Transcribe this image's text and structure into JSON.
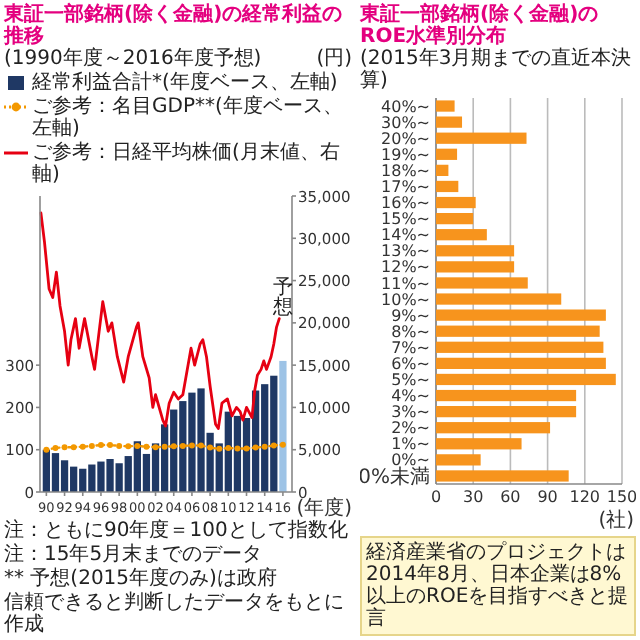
{
  "chart_data": [
    {
      "type": "bar",
      "title": "東証一部銘柄(除く金融)の経常利益の推移",
      "subtitle": "(1990年度～2016年度予想)",
      "xlabel": "(年度)",
      "y2label": "(円)",
      "legend": "top",
      "x": [
        1990,
        1991,
        1992,
        1993,
        1994,
        1995,
        1996,
        1997,
        1998,
        1999,
        2000,
        2001,
        2002,
        2003,
        2004,
        2005,
        2006,
        2007,
        2008,
        2009,
        2010,
        2011,
        2012,
        2013,
        2014,
        2015,
        2016
      ],
      "xlim": [
        1989.3,
        2017
      ],
      "xticks": [
        {
          "value": 1990,
          "label": "90"
        },
        {
          "value": 1992,
          "label": "92"
        },
        {
          "value": 1994,
          "label": "94"
        },
        {
          "value": 1996,
          "label": "96"
        },
        {
          "value": 1998,
          "label": "98"
        },
        {
          "value": 2000,
          "label": "00"
        },
        {
          "value": 2002,
          "label": "02"
        },
        {
          "value": 2004,
          "label": "04"
        },
        {
          "value": 2006,
          "label": "06"
        },
        {
          "value": 2008,
          "label": "08"
        },
        {
          "value": 2010,
          "label": "10"
        },
        {
          "value": 2012,
          "label": "12"
        },
        {
          "value": 2014,
          "label": "14"
        },
        {
          "value": 2016,
          "label": "16"
        }
      ],
      "ylim": [
        0,
        700
      ],
      "yticks": [
        0,
        100,
        200,
        300
      ],
      "y2lim": [
        0,
        35000
      ],
      "y2ticks": [
        0,
        {
          "value": 5000,
          "label": "5,000"
        },
        {
          "value": 10000,
          "label": "10,000"
        },
        {
          "value": 15000,
          "label": "15,000"
        },
        {
          "value": 20000,
          "label": "20,000"
        },
        {
          "value": 25000,
          "label": "25,000"
        },
        {
          "value": 30000,
          "label": "30,000"
        },
        {
          "value": 35000,
          "label": "35,000"
        }
      ],
      "series": [
        {
          "name": "経常利益合計*(年度ベース、左軸)",
          "type": "bar",
          "color": "#1f3864",
          "colors": [
            "#1f3864",
            "#1f3864",
            "#1f3864",
            "#1f3864",
            "#1f3864",
            "#1f3864",
            "#1f3864",
            "#1f3864",
            "#1f3864",
            "#1f3864",
            "#1f3864",
            "#1f3864",
            "#1f3864",
            "#1f3864",
            "#1f3864",
            "#1f3864",
            "#1f3864",
            "#1f3864",
            "#1f3864",
            "#1f3864",
            "#1f3864",
            "#1f3864",
            "#1f3864",
            "#1f3864",
            "#1f3864",
            "#1f3864",
            "#9dc3e6"
          ],
          "values": [
            100,
            92,
            75,
            60,
            55,
            65,
            72,
            78,
            68,
            85,
            120,
            90,
            115,
            160,
            195,
            215,
            235,
            245,
            140,
            115,
            190,
            180,
            175,
            240,
            255,
            275,
            310
          ]
        },
        {
          "name": "ご参考：名目GDP**(年度ベース、左軸)",
          "type": "line",
          "color": "#f39800",
          "line_style": "dotted",
          "marker": "circle",
          "values": [
            100,
            104,
            106,
            106,
            107,
            109,
            111,
            111,
            109,
            108,
            109,
            107,
            106,
            107,
            108,
            109,
            110,
            110,
            105,
            102,
            104,
            103,
            103,
            105,
            107,
            110,
            112
          ]
        },
        {
          "name": "ご参考：日経平均株価(月末値、右軸)",
          "type": "line",
          "axis": "y2",
          "color": "#e60012",
          "x": [
            1989.4,
            1989.8,
            1990.3,
            1990.7,
            1991.1,
            1991.5,
            1992.0,
            1992.4,
            1992.7,
            1993.2,
            1993.6,
            1994.2,
            1995.0,
            1995.3,
            1995.8,
            1996.2,
            1996.8,
            1997.2,
            1997.8,
            1998.5,
            1999.0,
            1999.9,
            2000.1,
            2000.6,
            2001.3,
            2001.7,
            2002.0,
            2002.8,
            2003.1,
            2003.5,
            2004.0,
            2004.5,
            2005.0,
            2005.9,
            2006.3,
            2006.9,
            2007.2,
            2007.6,
            2008.0,
            2008.6,
            2008.9,
            2009.3,
            2009.9,
            2010.4,
            2010.9,
            2011.3,
            2011.6,
            2012.0,
            2012.6,
            2012.9,
            2013.2,
            2013.6,
            2013.9,
            2014.2,
            2014.7,
            2015.0,
            2015.3,
            2015.6
          ],
          "values": [
            33000,
            29500,
            24000,
            23000,
            26000,
            22000,
            19000,
            15000,
            18000,
            20500,
            17000,
            20500,
            16000,
            14500,
            19000,
            22500,
            19000,
            20000,
            16000,
            13000,
            16000,
            19500,
            20000,
            16000,
            13500,
            10000,
            11500,
            8500,
            7800,
            10500,
            11800,
            11000,
            11500,
            17000,
            15000,
            17500,
            18000,
            16000,
            12500,
            8000,
            7500,
            10500,
            11000,
            9000,
            10000,
            9500,
            8500,
            10000,
            8800,
            12000,
            13800,
            14500,
            15500,
            14500,
            16000,
            17500,
            19500,
            20500
          ]
        }
      ],
      "annotations": [
        "注：ともに90年度＝100として指数化",
        "注：15年5月末までのデータ",
        {
          "text": "予想",
          "x": 2016,
          "y": 310
        },
        "** 予想(2015年度のみ)は政府",
        "信頼できると判断したデータをもとに作成"
      ]
    },
    {
      "type": "bar",
      "orientation": "horizontal",
      "title": "東証一部銘柄(除く金融)のROE水準別分布",
      "subtitle": "(2015年3月期までの直近本決算)",
      "xlabel": "(社)",
      "color": "#f7941d",
      "grid": "x",
      "categories": [
        "40%~",
        "30%~",
        "20%~",
        "19%~",
        "18%~",
        "17%~",
        "16%~",
        "15%~",
        "14%~",
        "13%~",
        "12%~",
        "11%~",
        "10%~",
        "9%~",
        "8%~",
        "7%~",
        "6%~",
        "5%~",
        "4%~",
        "3%~",
        "2%~",
        "1%~",
        "0%~",
        "0%未満"
      ],
      "values": [
        15,
        21,
        73,
        17,
        10,
        18,
        32,
        30,
        41,
        63,
        63,
        74,
        101,
        137,
        132,
        135,
        137,
        145,
        113,
        113,
        92,
        69,
        36,
        107
      ],
      "xlim": [
        0,
        150
      ],
      "xticks": [
        0,
        30,
        60,
        90,
        120,
        150
      ],
      "annotations": [
        "経済産業省のプロジェクトは2014年8月、日本企業は8%以上のROEを目指すべきと提言"
      ]
    }
  ]
}
